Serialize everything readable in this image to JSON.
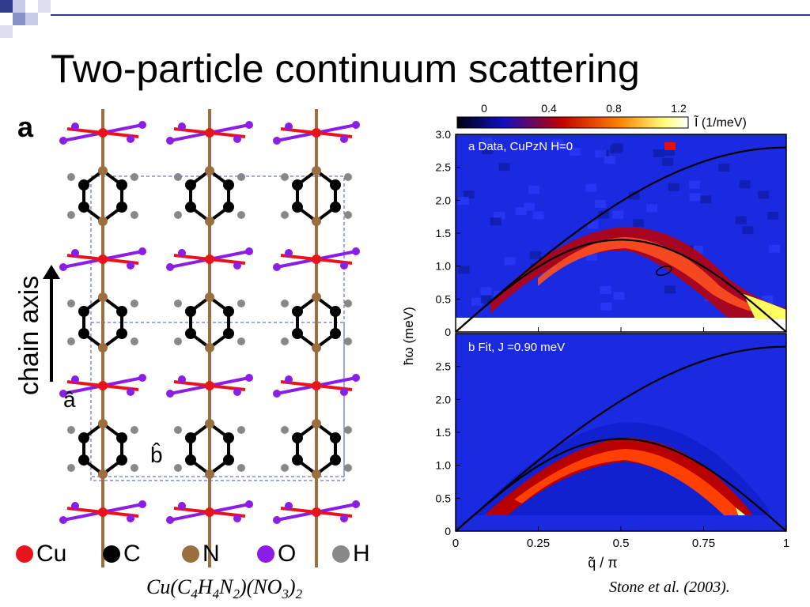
{
  "slide": {
    "title": "Two-particle continuum scattering",
    "formula": {
      "base": "Cu(C",
      "s1": "4",
      "p2": "H",
      "s2": "4",
      "p3": "N",
      "s3": "2",
      "p4": ")(NO",
      "s4": "3",
      "p5": ")",
      "s5": "2"
    },
    "citation": "Stone et al. (2003)."
  },
  "structure": {
    "panel_label": "a",
    "chain_axis_label": "chain axis",
    "axis_a": "â",
    "axis_b": "b̂",
    "legend": [
      {
        "label": "Cu",
        "color": "#e8141c"
      },
      {
        "label": "C",
        "color": "#000000"
      },
      {
        "label": "N",
        "color": "#9b7040"
      },
      {
        "label": "O",
        "color": "#8a1ee6"
      },
      {
        "label": "H",
        "color": "#888888"
      }
    ]
  },
  "chart_data": [
    {
      "type": "heatmap",
      "panel": "a Data, CuPzN H=0",
      "ylabel": "ħω (meV)",
      "ylim": [
        0,
        3.0
      ],
      "yticks": [
        "3.0",
        "2.5",
        "2.0",
        "1.5",
        "1.0",
        "0.5",
        "0"
      ],
      "colorbar": {
        "ticks": [
          "0",
          "0.4",
          "0.8",
          "1.2"
        ],
        "label": "Ĩ (1/meV)"
      }
    },
    {
      "type": "heatmap",
      "panel": "b Fit, J =0.90 meV",
      "xlabel": "q̃ / π",
      "xlim": [
        0,
        1
      ],
      "xticks": [
        "0",
        "0.25",
        "0.5",
        "0.75",
        "1"
      ],
      "ylim": [
        0,
        3.0
      ],
      "yticks": [
        "2.5",
        "2.0",
        "1.5",
        "1.0",
        "0.5",
        "0"
      ]
    }
  ]
}
